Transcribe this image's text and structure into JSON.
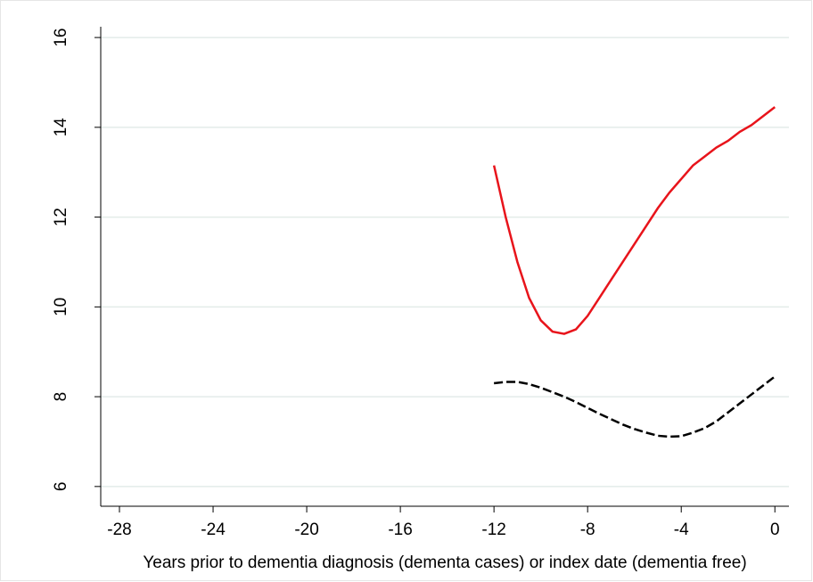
{
  "chart_data": {
    "type": "line",
    "x_label": "Years prior to dementia diagnosis (dementa cases) or index date (dementia free)",
    "x": [
      -12,
      -11.5,
      -11,
      -10.5,
      -10,
      -9.5,
      -9,
      -8.5,
      -8,
      -7.5,
      -7,
      -6.5,
      -6,
      -5.5,
      -5,
      -4.5,
      -4,
      -3.5,
      -3,
      -2.5,
      -2,
      -1.5,
      -1,
      -0.5,
      0
    ],
    "series": [
      {
        "color": "#e8141b",
        "dash": "solid",
        "values": [
          13.15,
          12.0,
          11.0,
          10.2,
          9.7,
          9.45,
          9.4,
          9.5,
          9.8,
          10.2,
          10.6,
          11.0,
          11.4,
          11.8,
          12.2,
          12.55,
          12.85,
          13.15,
          13.35,
          13.55,
          13.7,
          13.9,
          14.05,
          14.25,
          14.45
        ]
      },
      {
        "color": "#000000",
        "dash": "dashed",
        "values": [
          8.3,
          8.33,
          8.33,
          8.28,
          8.2,
          8.1,
          8.0,
          7.88,
          7.75,
          7.62,
          7.5,
          7.38,
          7.28,
          7.2,
          7.13,
          7.11,
          7.12,
          7.2,
          7.3,
          7.45,
          7.65,
          7.85,
          8.05,
          8.25,
          8.45
        ]
      }
    ],
    "xlim": [
      -28.8,
      0.6
    ],
    "xticks": [
      -28,
      -24,
      -20,
      -16,
      -12,
      -8,
      -4,
      0
    ],
    "ylim": [
      5.56,
      16.24
    ],
    "yticks": [
      6,
      8,
      10,
      12,
      14,
      16
    ],
    "grid": true
  }
}
